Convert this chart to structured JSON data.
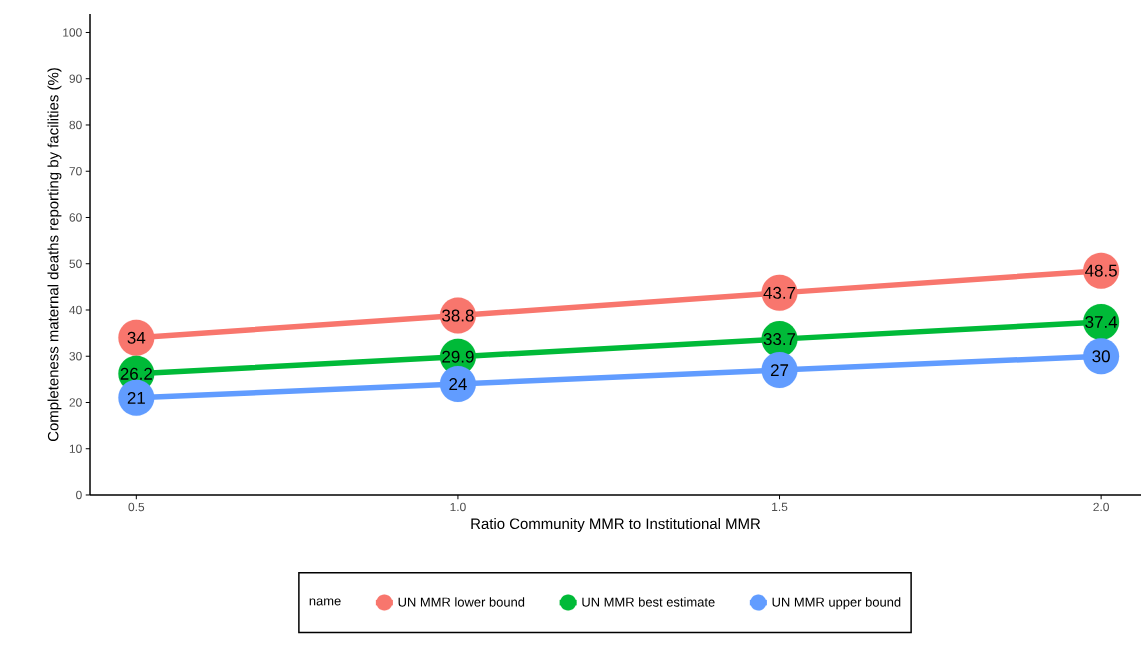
{
  "chart_data": {
    "type": "line",
    "xlabel": "Ratio Community MMR to Institutional MMR",
    "ylabel": "Completeness maternal deaths reporting by facilities (%)",
    "legend_title": "name",
    "x": [
      0.5,
      1.0,
      1.5,
      2.0
    ],
    "series": [
      {
        "name": "UN MMR lower bound",
        "color": "#f8766d",
        "values": [
          34,
          38.8,
          43.7,
          48.5
        ]
      },
      {
        "name": "UN MMR best estimate",
        "color": "#00ba38",
        "values": [
          26.2,
          29.9,
          33.7,
          37.4
        ]
      },
      {
        "name": "UN MMR upper bound",
        "color": "#619cff",
        "values": [
          21,
          24,
          27,
          30
        ]
      }
    ],
    "xlim": [
      0.428,
      2.062
    ],
    "ylim": [
      0,
      104
    ],
    "xticks": [
      {
        "value": 0.5,
        "label": "0.5"
      },
      {
        "value": 1.0,
        "label": "1.0"
      },
      {
        "value": 1.5,
        "label": "1.5"
      },
      {
        "value": 2.0,
        "label": "2.0"
      }
    ],
    "yticks": [
      0,
      10,
      20,
      30,
      40,
      50,
      60,
      70,
      80,
      90,
      100
    ],
    "data_labels": true,
    "grid": false,
    "legend": "bottom",
    "marker": "circle",
    "line_style": "solid"
  }
}
